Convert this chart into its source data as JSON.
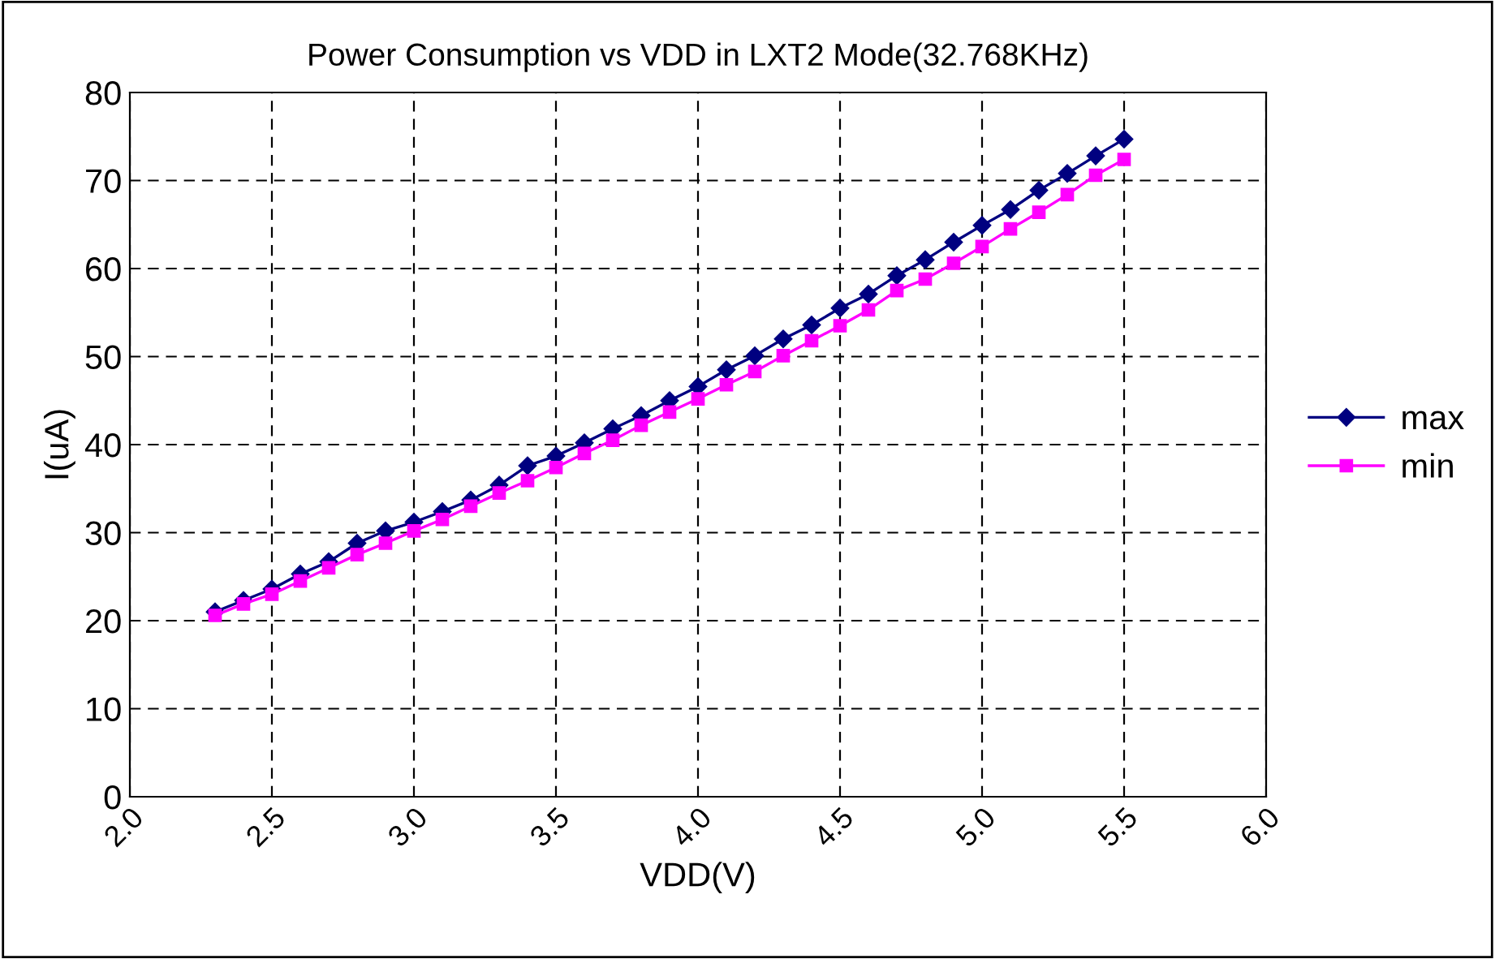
{
  "chart_data": {
    "type": "line",
    "title": "Power Consumption vs VDD in LXT2 Mode(32.768KHz)",
    "xlabel": "VDD(V)",
    "ylabel": "I(uA)",
    "x": [
      2.3,
      2.4,
      2.5,
      2.6,
      2.7,
      2.8,
      2.9,
      3.0,
      3.1,
      3.2,
      3.3,
      3.4,
      3.5,
      3.6,
      3.7,
      3.8,
      3.9,
      4.0,
      4.1,
      4.2,
      4.3,
      4.4,
      4.5,
      4.6,
      4.7,
      4.8,
      4.9,
      5.0,
      5.1,
      5.2,
      5.3,
      5.4,
      5.5
    ],
    "series": [
      {
        "name": "max",
        "color": "#000080",
        "marker": "diamond",
        "values": [
          21.0,
          22.3,
          23.6,
          25.3,
          26.7,
          28.8,
          30.2,
          31.2,
          32.4,
          33.7,
          35.4,
          37.6,
          38.7,
          40.2,
          41.8,
          43.3,
          45.0,
          46.6,
          48.5,
          50.1,
          52.0,
          53.6,
          55.5,
          57.1,
          59.2,
          61.0,
          63.0,
          64.9,
          66.7,
          68.9,
          70.8,
          72.8,
          74.7
        ]
      },
      {
        "name": "min",
        "color": "#ff00ff",
        "marker": "square",
        "values": [
          20.6,
          21.9,
          23.0,
          24.5,
          26.0,
          27.5,
          28.8,
          30.2,
          31.5,
          33.0,
          34.5,
          35.9,
          37.4,
          39.0,
          40.5,
          42.2,
          43.7,
          45.2,
          46.8,
          48.3,
          50.1,
          51.8,
          53.5,
          55.3,
          57.5,
          58.8,
          60.6,
          62.5,
          64.5,
          66.4,
          68.4,
          70.6,
          72.4
        ]
      }
    ],
    "xlim": [
      2.0,
      6.0
    ],
    "xticks": [
      {
        "value": 2.0,
        "label": "2.0"
      },
      {
        "value": 2.5,
        "label": "2.5"
      },
      {
        "value": 3.0,
        "label": "3.0"
      },
      {
        "value": 3.5,
        "label": "3.5"
      },
      {
        "value": 4.0,
        "label": "4.0"
      },
      {
        "value": 4.5,
        "label": "4.5"
      },
      {
        "value": 5.0,
        "label": "5.0"
      },
      {
        "value": 5.5,
        "label": "5.5"
      },
      {
        "value": 6.0,
        "label": "6.0"
      }
    ],
    "ylim": [
      0,
      80
    ],
    "yticks": [
      0,
      10,
      20,
      30,
      40,
      50,
      60,
      70,
      80
    ],
    "grid": true,
    "legend": "right",
    "line_style": "solid"
  }
}
